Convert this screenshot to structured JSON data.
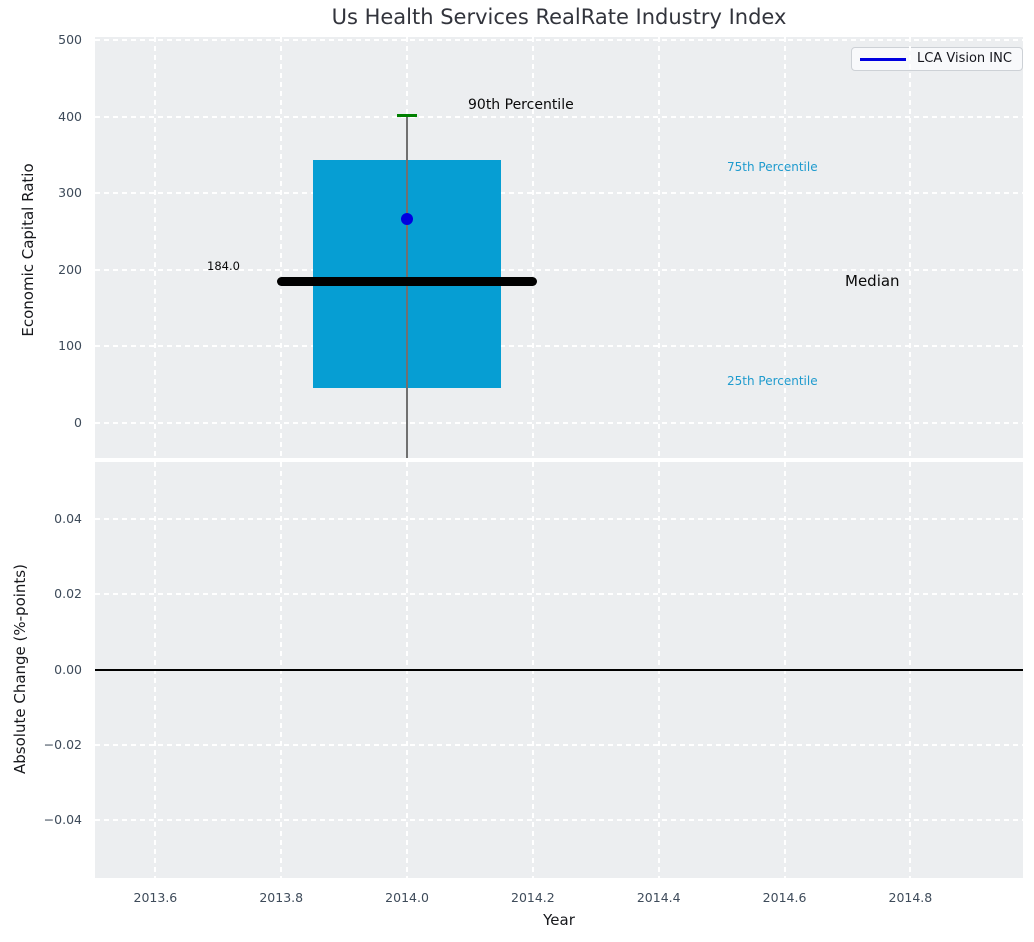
{
  "figure": {
    "title": "Us Health Services RealRate Industry Index",
    "background": "#ffffff",
    "axes_background": "#eceef0",
    "grid_color": "#ffffff",
    "tick_color": "#3e4b5a"
  },
  "legend": {
    "label": "LCA Vision INC",
    "line_color": "#0000e0"
  },
  "chart_data": [
    {
      "type": "boxplot",
      "title": "Us Health Services RealRate Industry Index",
      "ylabel": "Economic Capital Ratio",
      "legend_position": "upper right",
      "grid": true,
      "xlim": [
        2013.504,
        2014.979
      ],
      "ylim": [
        -46,
        504
      ],
      "yticks": {
        "values": [
          0,
          100,
          200,
          300,
          400,
          500
        ],
        "labels": [
          "0",
          "100",
          "200",
          "300",
          "400",
          "500"
        ]
      },
      "xticks": {
        "values": [
          2013.6,
          2013.8,
          2014.0,
          2014.2,
          2014.4,
          2014.6,
          2014.8
        ],
        "labels": []
      },
      "box": {
        "x_center": 2014.0,
        "x_left": 2013.85,
        "x_right": 2014.15,
        "p25": 46,
        "median": 184,
        "p75": 343,
        "p90": 402,
        "median_label": "184.0",
        "median_line_x": [
          2013.8,
          2014.2
        ],
        "p90_cap_x": [
          2013.984,
          2014.016
        ],
        "box_color": "#069ed3",
        "median_color": "#000000",
        "whisker_color": "#707070",
        "p90_cap_color": "#008000"
      },
      "series": [
        {
          "name": "LCA Vision INC",
          "x": 2014.0,
          "value": 266,
          "marker": "circle",
          "marker_color": "#0000e0"
        }
      ],
      "annotations": [
        {
          "text": "90th Percentile",
          "color": "#0a0a0a",
          "font_px": 14
        },
        {
          "text": "75th Percentile",
          "color": "#1f9bce",
          "font_px": 12
        },
        {
          "text": "Median",
          "color": "#0a0a0a",
          "font_px": 15
        },
        {
          "text": "25th Percentile",
          "color": "#1f9bce",
          "font_px": 12
        },
        {
          "text": "184.0",
          "color": "#0a0a0a",
          "font_px": 11.5
        }
      ]
    },
    {
      "type": "line",
      "ylabel": "Absolute Change (%-points)",
      "xlabel": "Year",
      "grid": true,
      "xlim": [
        2013.504,
        2014.979
      ],
      "ylim": [
        -0.0553,
        0.0551
      ],
      "yticks": {
        "values": [
          0.04,
          0.02,
          0.0,
          -0.02,
          -0.04
        ],
        "labels": [
          "0.04",
          "0.02",
          "0.00",
          "−0.02",
          "−0.04"
        ]
      },
      "xticks": {
        "values": [
          2013.6,
          2013.8,
          2014.0,
          2014.2,
          2014.4,
          2014.6,
          2014.8
        ],
        "labels": [
          "2013.6",
          "2013.8",
          "2014.0",
          "2014.2",
          "2014.4",
          "2014.6",
          "2014.8"
        ]
      },
      "zero_line": {
        "y": 0.0,
        "color": "#000000"
      },
      "series": [
        {
          "name": "LCA Vision INC",
          "x": [],
          "y": []
        }
      ]
    }
  ]
}
